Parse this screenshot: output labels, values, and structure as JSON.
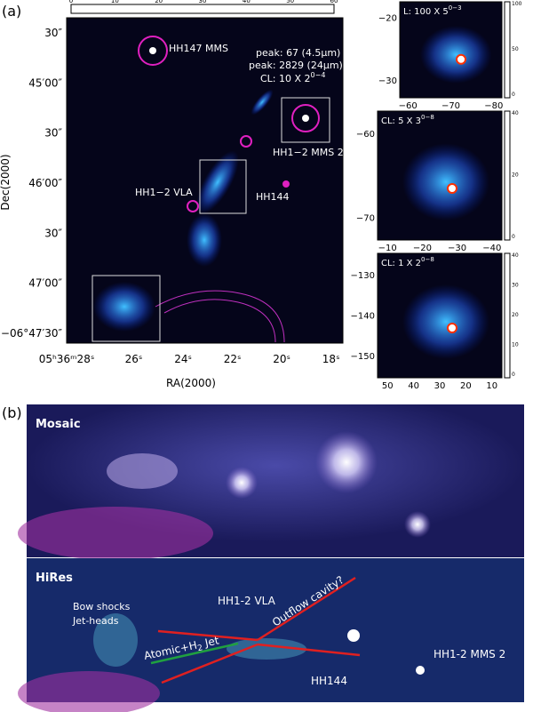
{
  "panel_a": {
    "label": "(a)",
    "colorbar": [
      "0",
      "10",
      "20",
      "30",
      "40",
      "50",
      "60"
    ],
    "y_labels": [
      "30″",
      "45′00″",
      "30″",
      "46′00″",
      "30″",
      "47′00″",
      "−06°47′30″"
    ],
    "x_labels": [
      "05ʰ36ᵐ28ˢ",
      "26ˢ",
      "24ˢ",
      "22ˢ",
      "20ˢ",
      "18ˢ"
    ],
    "x_title": "RA(2000)",
    "y_title": "Dec(2000)",
    "annotations": {
      "hh147": "HH147 MMS",
      "peak1": "peak: 67 (4.5μm)",
      "peak2": "peak: 2829 (24μm)",
      "cl": {
        "base": "CL: 10 X 2",
        "exponent": "0−4"
      },
      "mms2": "HH1−2 MMS 2",
      "vla": "HH1−2 VLA",
      "hh144": "HH144"
    },
    "insets": [
      {
        "cl": {
          "base": "L: 100 X 5",
          "exponent": "0−3"
        },
        "y_labels": [
          "−20",
          "−30"
        ],
        "x_labels": [
          "−60",
          "−70",
          "−80"
        ],
        "colorbar": [
          "100",
          "50",
          "0"
        ]
      },
      {
        "cl": {
          "base": "CL: 5 X 3",
          "exponent": "0−8"
        },
        "y_labels": [
          "−60",
          "−70"
        ],
        "x_labels": [
          "−10",
          "−20",
          "−30",
          "−40"
        ],
        "colorbar": [
          "40",
          "20",
          "0"
        ]
      },
      {
        "cl": {
          "base": "CL: 1 X 2",
          "exponent": "0−8"
        },
        "y_labels": [
          "−130",
          "−140",
          "−150"
        ],
        "x_labels": [
          "50",
          "40",
          "30",
          "20",
          "10"
        ],
        "colorbar": [
          "40",
          "30",
          "20",
          "10",
          "0"
        ]
      }
    ]
  },
  "panel_b": {
    "label": "(b)",
    "mosaic": "Mosaic",
    "hires": "HiRes",
    "annotations": {
      "bow": "Bow shocks",
      "jet_heads": "Jet-heads",
      "vla": "HH1-2 VLA",
      "cavity": "Outflow cavity?",
      "jet": {
        "base": "Atomic+H",
        "sub": "2",
        "rest": " Jet"
      },
      "mms2": "HH1-2 MMS 2",
      "hh144": "HH144"
    }
  }
}
